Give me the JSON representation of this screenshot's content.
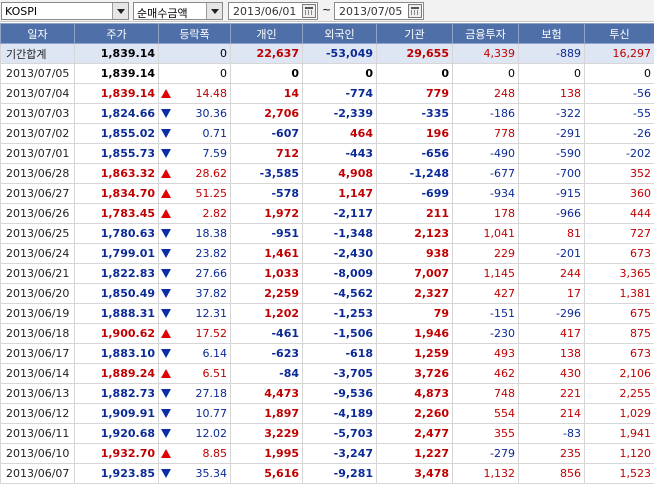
{
  "toolbar": {
    "market": "KOSPI",
    "metric": "순매수금액",
    "date_from": "2013/06/01",
    "date_to": "2013/07/05",
    "separator": "~"
  },
  "columns": [
    "일자",
    "주가",
    "등락폭",
    "개인",
    "외국인",
    "기관",
    "금융투자",
    "보험",
    "투신"
  ],
  "total": {
    "date": "기간합계",
    "price": "1,839.14",
    "change": "0",
    "individual": "22,637",
    "foreign": "-53,049",
    "institution": "29,655",
    "fin_invest": "4,339",
    "insurance": "-889",
    "trust": "16,297"
  },
  "rows": [
    {
      "date": "2013/07/05",
      "price": "1,839.14",
      "dir": "none",
      "change": "0",
      "individual": "0",
      "foreign": "0",
      "institution": "0",
      "fin_invest": "0",
      "insurance": "0",
      "trust": "0"
    },
    {
      "date": "2013/07/04",
      "price": "1,839.14",
      "dir": "up",
      "change": "14.48",
      "individual": "14",
      "foreign": "-774",
      "institution": "779",
      "fin_invest": "248",
      "insurance": "138",
      "trust": "-56"
    },
    {
      "date": "2013/07/03",
      "price": "1,824.66",
      "dir": "down",
      "change": "30.36",
      "individual": "2,706",
      "foreign": "-2,339",
      "institution": "-335",
      "fin_invest": "-186",
      "insurance": "-322",
      "trust": "-55"
    },
    {
      "date": "2013/07/02",
      "price": "1,855.02",
      "dir": "down",
      "change": "0.71",
      "individual": "-607",
      "foreign": "464",
      "institution": "196",
      "fin_invest": "778",
      "insurance": "-291",
      "trust": "-26"
    },
    {
      "date": "2013/07/01",
      "price": "1,855.73",
      "dir": "down",
      "change": "7.59",
      "individual": "712",
      "foreign": "-443",
      "institution": "-656",
      "fin_invest": "-490",
      "insurance": "-590",
      "trust": "-202"
    },
    {
      "date": "2013/06/28",
      "price": "1,863.32",
      "dir": "up",
      "change": "28.62",
      "individual": "-3,585",
      "foreign": "4,908",
      "institution": "-1,248",
      "fin_invest": "-677",
      "insurance": "-700",
      "trust": "352"
    },
    {
      "date": "2013/06/27",
      "price": "1,834.70",
      "dir": "up",
      "change": "51.25",
      "individual": "-578",
      "foreign": "1,147",
      "institution": "-699",
      "fin_invest": "-934",
      "insurance": "-915",
      "trust": "360"
    },
    {
      "date": "2013/06/26",
      "price": "1,783.45",
      "dir": "up",
      "change": "2.82",
      "individual": "1,972",
      "foreign": "-2,117",
      "institution": "211",
      "fin_invest": "178",
      "insurance": "-966",
      "trust": "444"
    },
    {
      "date": "2013/06/25",
      "price": "1,780.63",
      "dir": "down",
      "change": "18.38",
      "individual": "-951",
      "foreign": "-1,348",
      "institution": "2,123",
      "fin_invest": "1,041",
      "insurance": "81",
      "trust": "727"
    },
    {
      "date": "2013/06/24",
      "price": "1,799.01",
      "dir": "down",
      "change": "23.82",
      "individual": "1,461",
      "foreign": "-2,430",
      "institution": "938",
      "fin_invest": "229",
      "insurance": "-201",
      "trust": "673"
    },
    {
      "date": "2013/06/21",
      "price": "1,822.83",
      "dir": "down",
      "change": "27.66",
      "individual": "1,033",
      "foreign": "-8,009",
      "institution": "7,007",
      "fin_invest": "1,145",
      "insurance": "244",
      "trust": "3,365"
    },
    {
      "date": "2013/06/20",
      "price": "1,850.49",
      "dir": "down",
      "change": "37.82",
      "individual": "2,259",
      "foreign": "-4,562",
      "institution": "2,327",
      "fin_invest": "427",
      "insurance": "17",
      "trust": "1,381"
    },
    {
      "date": "2013/06/19",
      "price": "1,888.31",
      "dir": "down",
      "change": "12.31",
      "individual": "1,202",
      "foreign": "-1,253",
      "institution": "79",
      "fin_invest": "-151",
      "insurance": "-296",
      "trust": "675"
    },
    {
      "date": "2013/06/18",
      "price": "1,900.62",
      "dir": "up",
      "change": "17.52",
      "individual": "-461",
      "foreign": "-1,506",
      "institution": "1,946",
      "fin_invest": "-230",
      "insurance": "417",
      "trust": "875"
    },
    {
      "date": "2013/06/17",
      "price": "1,883.10",
      "dir": "down",
      "change": "6.14",
      "individual": "-623",
      "foreign": "-618",
      "institution": "1,259",
      "fin_invest": "493",
      "insurance": "138",
      "trust": "673"
    },
    {
      "date": "2013/06/14",
      "price": "1,889.24",
      "dir": "up",
      "change": "6.51",
      "individual": "-84",
      "foreign": "-3,705",
      "institution": "3,726",
      "fin_invest": "462",
      "insurance": "430",
      "trust": "2,106"
    },
    {
      "date": "2013/06/13",
      "price": "1,882.73",
      "dir": "down",
      "change": "27.18",
      "individual": "4,473",
      "foreign": "-9,536",
      "institution": "4,873",
      "fin_invest": "748",
      "insurance": "221",
      "trust": "2,255"
    },
    {
      "date": "2013/06/12",
      "price": "1,909.91",
      "dir": "down",
      "change": "10.77",
      "individual": "1,897",
      "foreign": "-4,189",
      "institution": "2,260",
      "fin_invest": "554",
      "insurance": "214",
      "trust": "1,029"
    },
    {
      "date": "2013/06/11",
      "price": "1,920.68",
      "dir": "down",
      "change": "12.02",
      "individual": "3,229",
      "foreign": "-5,703",
      "institution": "2,477",
      "fin_invest": "355",
      "insurance": "-83",
      "trust": "1,941"
    },
    {
      "date": "2013/06/10",
      "price": "1,932.70",
      "dir": "up",
      "change": "8.85",
      "individual": "1,995",
      "foreign": "-3,247",
      "institution": "1,227",
      "fin_invest": "-279",
      "insurance": "235",
      "trust": "1,120"
    },
    {
      "date": "2013/06/07",
      "price": "1,923.85",
      "dir": "down",
      "change": "35.34",
      "individual": "5,616",
      "foreign": "-9,281",
      "institution": "3,478",
      "fin_invest": "1,132",
      "insurance": "856",
      "trust": "1,523"
    }
  ]
}
